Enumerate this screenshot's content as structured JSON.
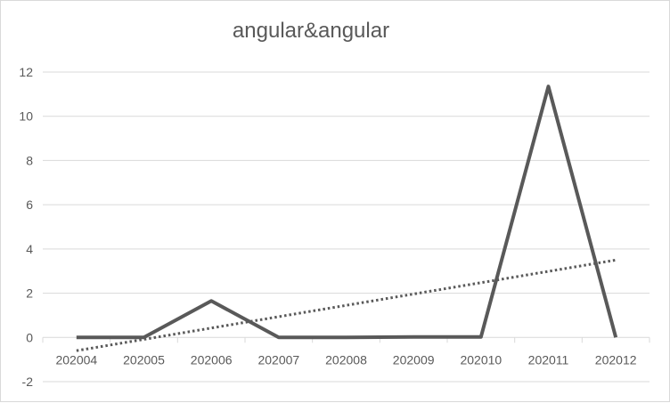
{
  "chart_data": {
    "type": "line",
    "title": "angular&angular",
    "xlabel": "",
    "ylabel": "",
    "categories": [
      "202004",
      "202005",
      "202006",
      "202007",
      "202008",
      "202009",
      "202010",
      "202011",
      "202012"
    ],
    "series": [
      {
        "values": [
          0,
          0,
          1.65,
          0,
          0,
          0.02,
          0.02,
          11.35,
          0
        ],
        "color": "#595959",
        "style": "solid"
      },
      {
        "values": [
          -0.6,
          0.1,
          0.6,
          1.2,
          1.7,
          2.1,
          2.5,
          3.0,
          3.5
        ],
        "color": "#595959",
        "style": "dotted"
      }
    ],
    "ylim": [
      -2,
      12
    ],
    "yticks": [
      -2,
      0,
      2,
      4,
      6,
      8,
      10,
      12
    ],
    "grid": true,
    "legend": "none"
  },
  "colors": {
    "grid": "#d9d9d9",
    "series": "#595959",
    "text": "#595959"
  }
}
